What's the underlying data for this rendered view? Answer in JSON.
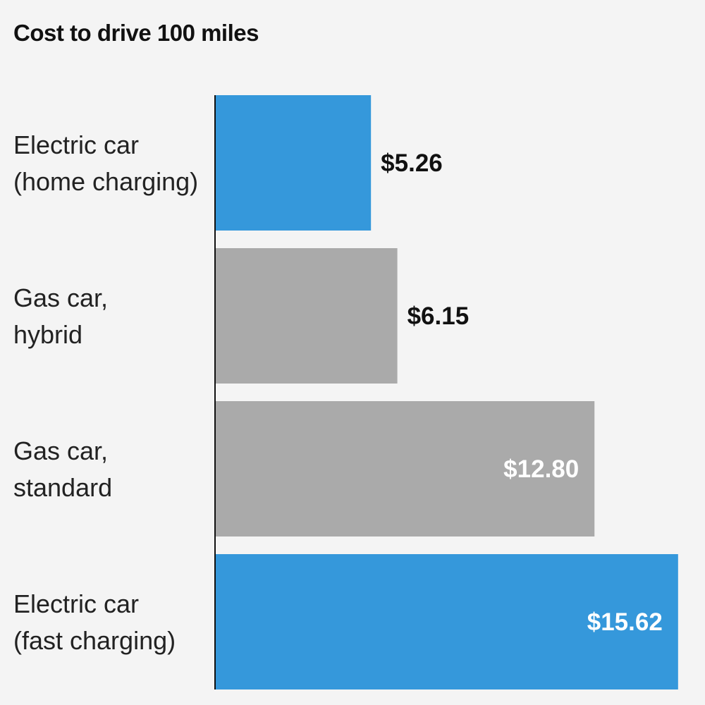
{
  "chart_data": {
    "type": "bar",
    "orientation": "horizontal",
    "title": "Cost to drive 100 miles",
    "categories": [
      [
        "Electric car",
        "(home charging)"
      ],
      [
        "Gas car,",
        "hybrid"
      ],
      [
        "Gas car,",
        "standard"
      ],
      [
        "Electric car",
        "(fast charging)"
      ]
    ],
    "values": [
      5.26,
      6.15,
      12.8,
      15.62
    ],
    "value_labels": [
      "$5.26",
      "$6.15",
      "$12.80",
      "$15.62"
    ],
    "bar_colors": [
      "#3598db",
      "#aaaaaa",
      "#aaaaaa",
      "#3598db"
    ],
    "xlim": [
      0,
      16.5
    ],
    "grid": false,
    "legend": "none"
  },
  "colors": {
    "background": "#f4f4f4",
    "electric": "#3598db",
    "gas": "#aaaaaa"
  }
}
